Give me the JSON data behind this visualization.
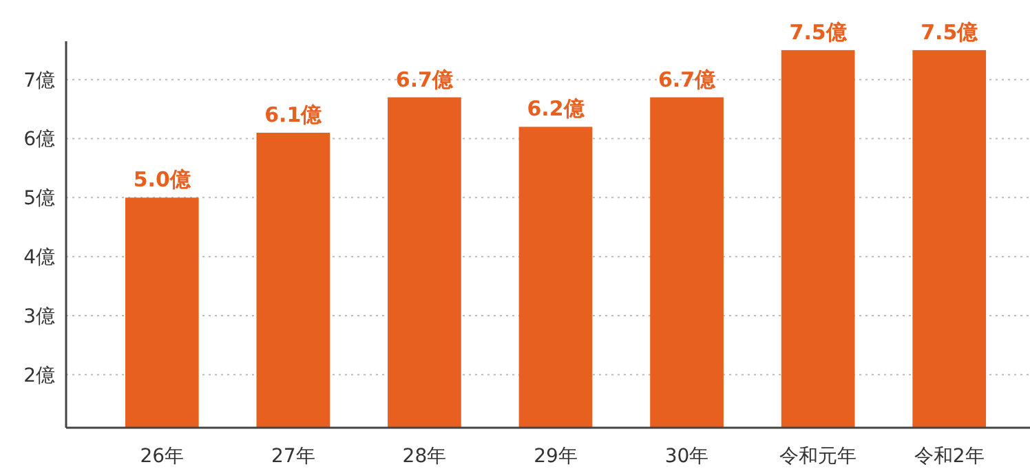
{
  "chart_data": {
    "type": "bar",
    "categories": [
      "26年",
      "27年",
      "28年",
      "29年",
      "30年",
      "令和元年",
      "令和2年"
    ],
    "values": [
      5.0,
      6.1,
      6.7,
      6.2,
      6.7,
      7.5,
      7.5
    ],
    "value_labels": [
      "5.0億",
      "6.1億",
      "6.7億",
      "6.2億",
      "6.7億",
      "7.5億",
      "7.5億"
    ],
    "color": "#e8601f",
    "ylim": [
      1.1,
      7.65
    ],
    "yticks": [
      {
        "value": 2,
        "label": "2億"
      },
      {
        "value": 3,
        "label": "3億"
      },
      {
        "value": 4,
        "label": "4億"
      },
      {
        "value": 5,
        "label": "5億"
      },
      {
        "value": 6,
        "label": "6億"
      },
      {
        "value": 7,
        "label": "7億"
      }
    ],
    "grid": "y"
  }
}
